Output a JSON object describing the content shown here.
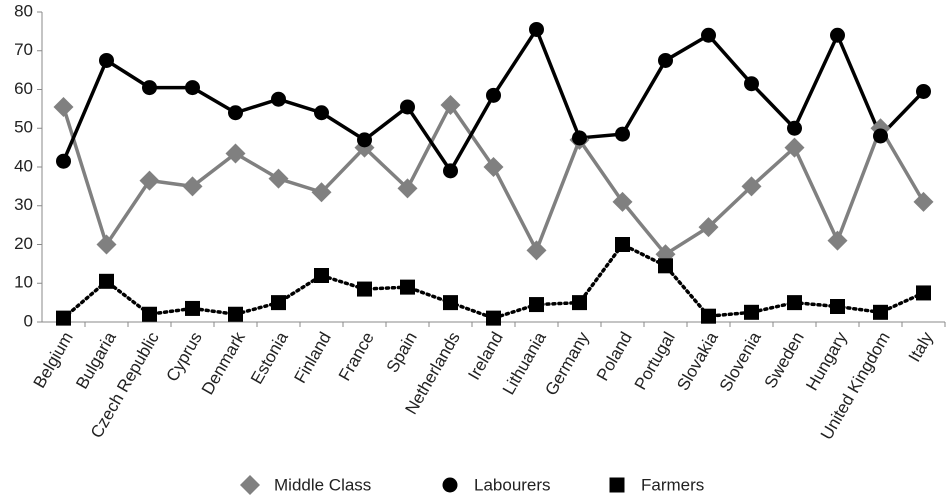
{
  "chart_data": {
    "type": "line",
    "categories": [
      "Belgium",
      "Bulgaria",
      "Czech Republic",
      "Cyprus",
      "Denmark",
      "Estonia",
      "Finland",
      "France",
      "Spain",
      "Netherlands",
      "Ireland",
      "Lithuania",
      "Germany",
      "Poland",
      "Portugal",
      "Slovakia",
      "Slovenia",
      "Sweden",
      "Hungary",
      "United Kingdom",
      "Italy"
    ],
    "series": [
      {
        "name": "Middle Class",
        "color": "#808080",
        "marker": "diamond",
        "linestyle": "solid",
        "values": [
          55.5,
          20,
          36.5,
          35,
          43.5,
          37,
          33.5,
          45,
          34.5,
          56,
          40,
          18.5,
          47,
          31,
          17.5,
          24.5,
          35,
          45,
          21,
          50,
          31
        ]
      },
      {
        "name": "Labourers",
        "color": "#000000",
        "marker": "circle",
        "linestyle": "solid",
        "values": [
          41.5,
          67.5,
          60.5,
          60.5,
          54,
          57.5,
          54,
          47,
          55.5,
          39,
          58.5,
          75.5,
          47.5,
          48.5,
          67.5,
          74,
          61.5,
          50,
          74,
          48,
          59.5
        ]
      },
      {
        "name": "Farmers",
        "color": "#000000",
        "marker": "square",
        "linestyle": "dotted",
        "values": [
          1,
          10.5,
          2,
          3.5,
          2,
          5,
          12,
          8.5,
          9,
          5,
          1,
          4.5,
          5,
          20,
          14.5,
          1.5,
          2.5,
          5,
          4,
          2.5,
          7.5
        ]
      }
    ],
    "ylim": [
      0,
      80
    ],
    "yticks": [
      0,
      10,
      20,
      30,
      40,
      50,
      60,
      70,
      80
    ],
    "legend": "bottom"
  }
}
